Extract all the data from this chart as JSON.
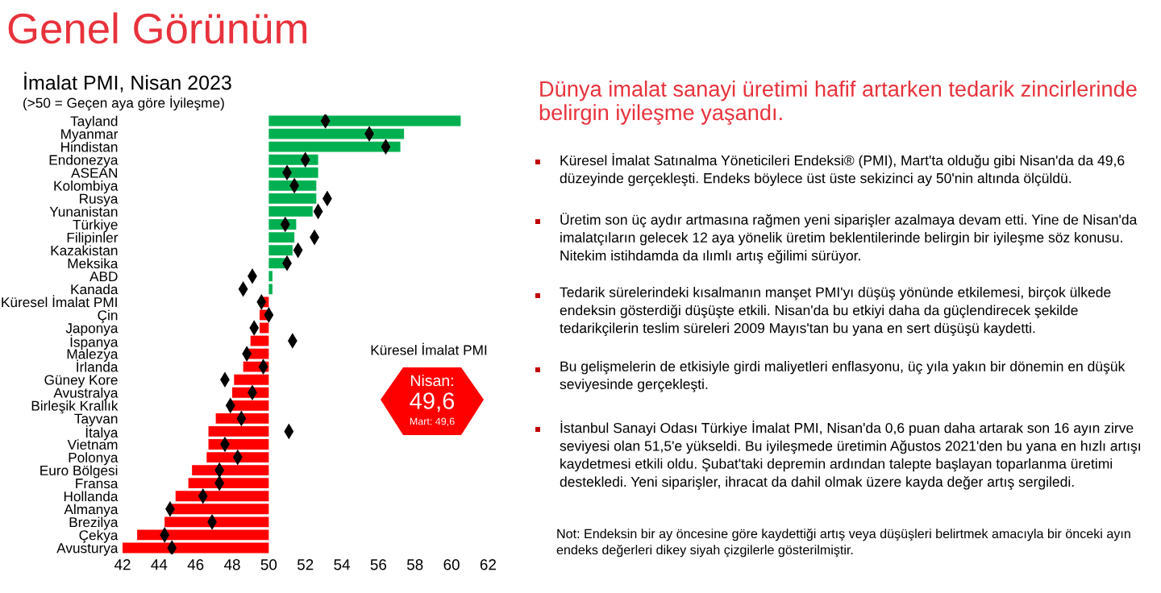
{
  "chart_data": {
    "type": "bar",
    "orientation": "horizontal",
    "title": "İmalat PMI, Nisan 2023",
    "subtitle": "(>50 = Geçen aya göre İyileşme)",
    "categories": [
      "Tayland",
      "Myanmar",
      "Hindistan",
      "Endonezya",
      "ASEAN",
      "Kolombiya",
      "Rusya",
      "Yunanistan",
      "Türkiye",
      "Filipinler",
      "Kazakistan",
      "Meksika",
      "ABD",
      "Kanada",
      "Küresel İmalat PMI",
      "Çin",
      "Japonya",
      "İspanya",
      "Malezya",
      "İrlanda",
      "Güney Kore",
      "Avustralya",
      "Birleşik Krallık",
      "Tayvan",
      "İtalya",
      "Vietnam",
      "Polonya",
      "Euro Bölgesi",
      "Fransa",
      "Hollanda",
      "Almanya",
      "Brezilya",
      "Çekya",
      "Avusturya"
    ],
    "series": [
      {
        "type": "bar",
        "base": [
          50,
          50,
          50,
          50,
          50,
          50,
          50,
          50,
          50,
          50,
          50,
          50,
          50,
          50,
          50,
          50,
          50,
          50,
          50,
          50,
          50,
          50,
          50,
          50,
          50,
          50,
          50,
          50,
          50,
          50,
          50,
          50,
          50,
          50
        ],
        "values": [
          10.5,
          7.4,
          7.2,
          2.7,
          2.7,
          2.6,
          2.6,
          2.4,
          1.5,
          1.4,
          1.3,
          1.0,
          0.2,
          0.2,
          -0.4,
          -0.5,
          -0.5,
          -1.0,
          -1.2,
          -1.4,
          -1.9,
          -2.0,
          -2.2,
          -2.9,
          -3.3,
          -3.3,
          -3.4,
          -4.2,
          -4.4,
          -5.1,
          -5.3,
          -5.7,
          -7.2,
          -8.0
        ],
        "colors": [
          "#00b050",
          "#00b050",
          "#00b050",
          "#00b050",
          "#00b050",
          "#00b050",
          "#00b050",
          "#00b050",
          "#00b050",
          "#00b050",
          "#00b050",
          "#00b050",
          "#00b050",
          "#00b050",
          "#ff0000",
          "#ff0000",
          "#ff0000",
          "#ff0000",
          "#ff0000",
          "#ff0000",
          "#ff0000",
          "#ff0000",
          "#ff0000",
          "#ff0000",
          "#ff0000",
          "#ff0000",
          "#ff0000",
          "#ff0000",
          "#ff0000",
          "#ff0000",
          "#ff0000",
          "#ff0000",
          "#ff0000",
          "#ff0000"
        ]
      },
      {
        "type": "scatter",
        "color": "#000000",
        "marker": "diamond",
        "values": [
          53.1,
          55.5,
          56.4,
          52.0,
          51.0,
          51.4,
          53.2,
          52.7,
          50.9,
          52.5,
          51.6,
          51.0,
          49.1,
          48.6,
          49.6,
          50.0,
          49.2,
          51.3,
          48.8,
          49.7,
          47.6,
          49.1,
          47.9,
          48.5,
          51.1,
          47.6,
          48.3,
          47.3,
          47.3,
          46.4,
          44.6,
          46.9,
          44.3,
          44.7
        ]
      }
    ],
    "xlim": [
      42,
      62
    ],
    "xticks": [
      42,
      44,
      46,
      48,
      50,
      52,
      54,
      56,
      58,
      60,
      62
    ],
    "annotations": [
      "Genel Görünüm",
      "Küresel İmalat PMI",
      "Nisan:",
      "49,6",
      "Mart: 49,6",
      "Dünya imalat sanayi üretimi hafif artarken tedarik zincirlerinde belirgin iyileşme yaşandı.",
      "Küresel İmalat Satınalma Yöneticileri Endeksi® (PMI), Mart'ta olduğu gibi Nisan'da da 49,6 düzeyinde gerçekleşti. Endeks böylece üst üste sekizinci ay 50'nin altında ölçüldü.",
      "Üretim son üç aydır artmasına rağmen yeni siparişler azalmaya devam etti. Yine de Nisan'da imalatçıların gelecek 12 aya yönelik üretim beklentilerinde belirgin bir iyileşme söz konusu. Nitekim istihdamda da ılımlı artış eğilimi sürüyor.",
      "Tedarik sürelerindeki kısalmanın manşet PMI'yı düşüş yönünde etkilemesi, birçok ülkede endeksin gösterdiği düşüşte etkili. Nisan'da bu etkiyi daha da güçlendirecek şekilde tedarikçilerin teslim süreleri 2009 Mayıs'tan bu yana en sert düşüşü kaydetti.",
      "Bu gelişmelerin de etkisiyle girdi maliyetleri enflasyonu, üç yıla yakın bir dönemin en düşük seviyesinde gerçekleşti.",
      "İstanbul Sanayi Odası Türkiye İmalat PMI, Nisan'da 0,6 puan daha artarak son 16 ayın zirve seviyesi olan 51,5'e yükseldi. Bu iyileşmede üretimin Ağustos 2021'den bu yana en hızlı artışı kaydetmesi etkili oldu. Şubat'taki depremin ardından talepte başlayan toparlanma üretimi destekledi. Yeni siparişler, ihracat da dahil olmak üzere kayda değer artış sergiledi.",
      "Not: Endeksin bir ay öncesine göre kaydettiği artış veya düşüşleri belirtmek amacıyla bir önceki ayın endeks değerleri dikey siyah çizgilerle gösterilmiştir."
    ]
  }
}
